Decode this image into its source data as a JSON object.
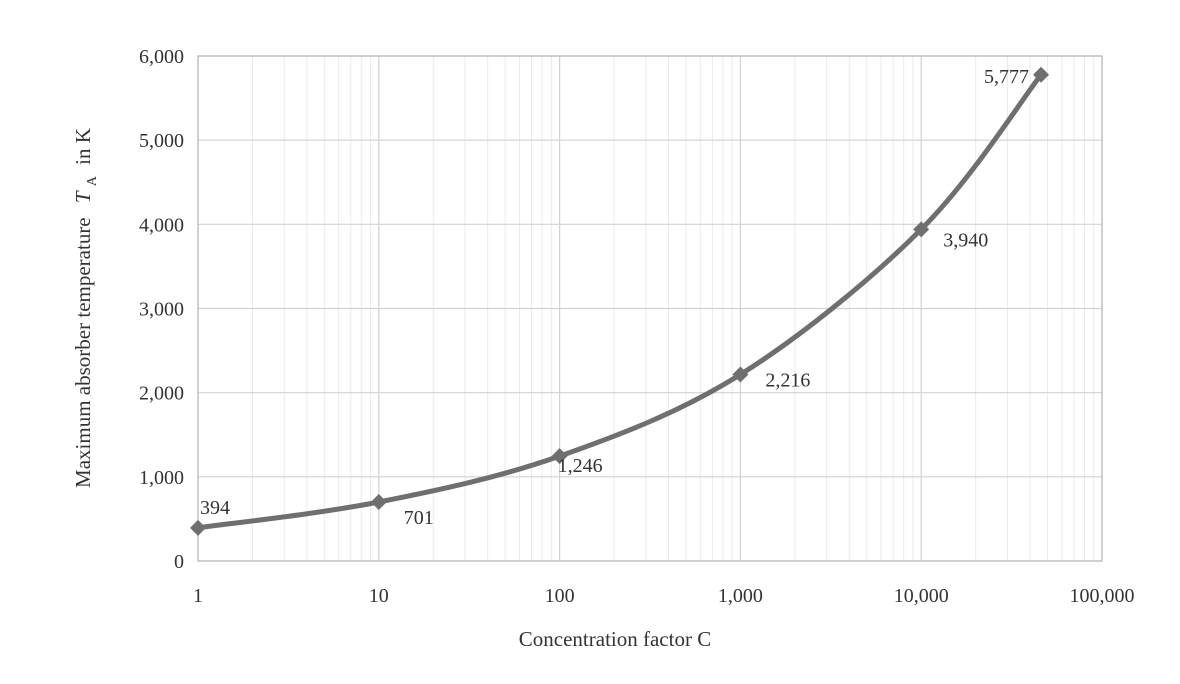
{
  "chart_data": {
    "type": "line",
    "x_scale": "log",
    "x": [
      1,
      10,
      100,
      1000,
      10000,
      46000
    ],
    "series": [
      {
        "values": [
          394,
          701,
          1246,
          2216,
          3940,
          5777
        ],
        "data_labels": [
          "394",
          "701",
          "1,246",
          "2,216",
          "3,940",
          "5,777"
        ],
        "color": "#6f6f6f",
        "marker": "diamond"
      }
    ],
    "xlabel": "Concentration factor C",
    "ylabel_main": "Maximum absorber temperature",
    "ylabel_symbol": "T",
    "ylabel_subscript": "A",
    "ylabel_unit": "in K",
    "xlim": [
      1,
      100000
    ],
    "ylim": [
      0,
      6000
    ],
    "x_ticks": [
      1,
      10,
      100,
      1000,
      10000,
      100000
    ],
    "x_tick_labels": [
      "1",
      "10",
      "100",
      "1,000",
      "10,000",
      "100,000"
    ],
    "y_ticks": [
      0,
      1000,
      2000,
      3000,
      4000,
      5000,
      6000
    ],
    "y_tick_labels": [
      "0",
      "1,000",
      "2,000",
      "3,000",
      "4,000",
      "5,000",
      "6,000"
    ],
    "grid": true,
    "minor_grid": true,
    "colors": {
      "line": "#6f6f6f",
      "grid": "#d2d2d2",
      "minor_grid": "#ebebeb",
      "frame": "#b8b8b8",
      "text": "#333333"
    }
  }
}
